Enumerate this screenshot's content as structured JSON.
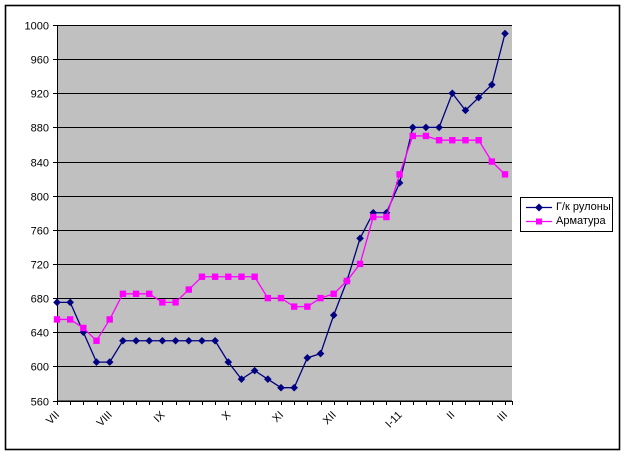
{
  "frame": {
    "border_color": "#000000",
    "background_color": "#FFFFFF"
  },
  "chart_data": {
    "type": "line",
    "title": "",
    "xlabel": "",
    "ylabel": "",
    "grid": true,
    "plot_bg_color": "#C0C0C0",
    "gridline_color": "#000000",
    "axis_text_color": "#000000",
    "legend_position": "right-middle",
    "ylim": [
      560,
      1000
    ],
    "y_ticks": [
      1000,
      960,
      920,
      880,
      840,
      800,
      760,
      720,
      680,
      640,
      600,
      560
    ],
    "n_points": 35,
    "x_tick_labels": [
      {
        "label": "VII",
        "index": 0
      },
      {
        "label": "VIII",
        "index": 4
      },
      {
        "label": "IX",
        "index": 8
      },
      {
        "label": "X",
        "index": 13
      },
      {
        "label": "XI",
        "index": 17
      },
      {
        "label": "XII",
        "index": 21
      },
      {
        "label": "I-11",
        "index": 26
      },
      {
        "label": "II",
        "index": 30
      },
      {
        "label": "III",
        "index": 34
      }
    ],
    "series": [
      {
        "name": "Г/к рулоны",
        "color": "#000080",
        "marker": "diamond",
        "values": [
          675,
          675,
          640,
          605,
          605,
          630,
          630,
          630,
          630,
          630,
          630,
          630,
          630,
          605,
          585,
          595,
          585,
          575,
          575,
          610,
          615,
          660,
          700,
          750,
          780,
          780,
          815,
          880,
          880,
          880,
          920,
          900,
          915,
          930,
          990
        ]
      },
      {
        "name": "Арматура",
        "color": "#FF00FF",
        "marker": "square",
        "values": [
          655,
          655,
          645,
          630,
          655,
          685,
          685,
          685,
          675,
          675,
          690,
          705,
          705,
          705,
          705,
          705,
          680,
          680,
          670,
          670,
          680,
          685,
          700,
          720,
          775,
          775,
          825,
          870,
          870,
          865,
          865,
          865,
          865,
          840,
          825
        ]
      }
    ]
  }
}
